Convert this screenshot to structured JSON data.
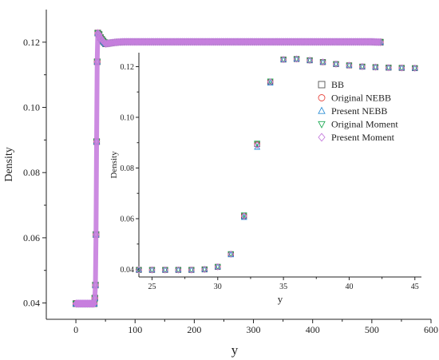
{
  "chart_data": [
    {
      "type": "scatter",
      "role": "main",
      "title": "",
      "xlabel": "y",
      "ylabel": "Density",
      "xlim": [
        -50,
        600
      ],
      "ylim": [
        0.035,
        0.13
      ],
      "xticks": [
        0,
        100,
        200,
        300,
        400,
        500,
        600
      ],
      "yticks": [
        0.04,
        0.06,
        0.08,
        0.1,
        0.12
      ],
      "ytick_labels": [
        "0.04",
        "0.06",
        "0.08",
        "0.10",
        "0.12"
      ],
      "grid": false,
      "x": [
        0,
        2,
        4,
        6,
        8,
        10,
        12,
        14,
        16,
        18,
        20,
        22,
        24,
        26,
        28,
        30,
        31,
        32,
        33,
        34,
        35,
        36,
        37,
        38,
        39,
        40,
        45,
        50,
        60,
        70,
        80,
        100,
        150,
        200,
        250,
        300,
        350,
        400,
        450,
        500,
        515
      ],
      "values": [
        0.0398,
        0.0398,
        0.0398,
        0.0398,
        0.0398,
        0.0398,
        0.0398,
        0.0398,
        0.0398,
        0.0398,
        0.0398,
        0.0398,
        0.0398,
        0.0398,
        0.0398,
        0.0398,
        0.0398,
        0.0415,
        0.0455,
        0.061,
        0.0895,
        0.114,
        0.1228,
        0.123,
        0.1225,
        0.1218,
        0.1205,
        0.1195,
        0.1198,
        0.12,
        0.1201,
        0.1201,
        0.1201,
        0.1201,
        0.1201,
        0.1201,
        0.1201,
        0.1201,
        0.1201,
        0.1201,
        0.12
      ],
      "series": [
        {
          "name": "BB",
          "marker": "square",
          "color": "#555555"
        },
        {
          "name": "Original NEBB",
          "marker": "circle",
          "color": "#e8473f"
        },
        {
          "name": "Present NEBB",
          "marker": "triangle-up",
          "color": "#2f8fd6"
        },
        {
          "name": "Original Moment",
          "marker": "triangle-down",
          "color": "#1faa55"
        },
        {
          "name": "Present Moment",
          "marker": "diamond",
          "color": "#c77ede"
        }
      ]
    },
    {
      "type": "scatter",
      "role": "inset",
      "title": "",
      "xlabel": "y",
      "ylabel": "Density",
      "xlim": [
        24,
        45.5
      ],
      "ylim": [
        0.037,
        0.1255
      ],
      "xticks": [
        25,
        30,
        35,
        40,
        45
      ],
      "yticks": [
        0.04,
        0.06,
        0.08,
        0.1,
        0.12
      ],
      "ytick_labels": [
        "0.04",
        "0.06",
        "0.08",
        "0.10",
        "0.12"
      ],
      "grid": false,
      "legend_position": "upper-right",
      "x": [
        24,
        25,
        26,
        27,
        28,
        29,
        30,
        31,
        32,
        33,
        34,
        35,
        36,
        37,
        38,
        39,
        40,
        41,
        42,
        43,
        44,
        45
      ],
      "series": [
        {
          "name": "BB",
          "marker": "square",
          "color": "#555555",
          "values": [
            0.0398,
            0.0398,
            0.0398,
            0.0398,
            0.0398,
            0.04,
            0.041,
            0.046,
            0.061,
            0.0895,
            0.114,
            0.1228,
            0.123,
            0.1225,
            0.1218,
            0.121,
            0.1205,
            0.12,
            0.1198,
            0.1196,
            0.1195,
            0.1194
          ]
        },
        {
          "name": "Original NEBB",
          "marker": "circle",
          "color": "#e8473f",
          "values": [
            0.0398,
            0.0398,
            0.0398,
            0.0398,
            0.0398,
            0.04,
            0.041,
            0.046,
            0.0612,
            0.0893,
            0.1141,
            0.1228,
            0.123,
            0.1225,
            0.1218,
            0.121,
            0.1205,
            0.12,
            0.1198,
            0.1196,
            0.1195,
            0.1194
          ]
        },
        {
          "name": "Present NEBB",
          "marker": "triangle-up",
          "color": "#2f8fd6",
          "values": [
            0.0398,
            0.0398,
            0.0398,
            0.0398,
            0.0398,
            0.04,
            0.041,
            0.0458,
            0.0605,
            0.0882,
            0.1135,
            0.1228,
            0.123,
            0.1225,
            0.1218,
            0.121,
            0.1205,
            0.12,
            0.1198,
            0.1196,
            0.1195,
            0.1194
          ]
        },
        {
          "name": "Original Moment",
          "marker": "triangle-down",
          "color": "#1faa55",
          "values": [
            0.0398,
            0.0398,
            0.0398,
            0.0398,
            0.0398,
            0.04,
            0.0411,
            0.0461,
            0.0615,
            0.0898,
            0.1143,
            0.1228,
            0.123,
            0.1225,
            0.1218,
            0.121,
            0.1205,
            0.12,
            0.1198,
            0.1196,
            0.1195,
            0.1194
          ]
        },
        {
          "name": "Present Moment",
          "marker": "diamond",
          "color": "#c77ede",
          "values": [
            0.0398,
            0.0398,
            0.0398,
            0.0398,
            0.0398,
            0.04,
            0.041,
            0.046,
            0.061,
            0.089,
            0.114,
            0.1228,
            0.123,
            0.1225,
            0.1218,
            0.121,
            0.1205,
            0.12,
            0.1198,
            0.1196,
            0.1195,
            0.1194
          ]
        }
      ]
    }
  ]
}
